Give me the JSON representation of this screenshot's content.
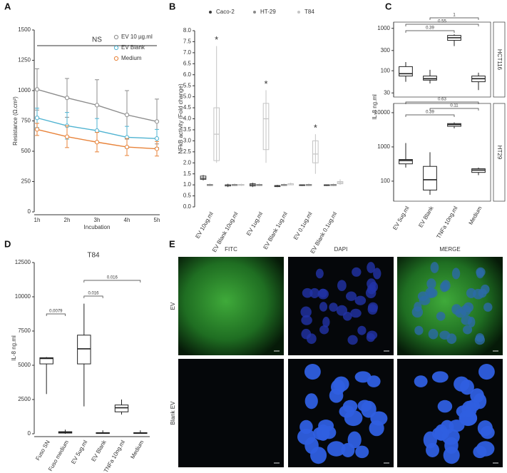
{
  "chart_data": [
    {
      "type": "line",
      "panel": "A",
      "x_label": "Incubation",
      "y_label": "Resistance (Ω.cm²)",
      "annotation": "NS",
      "legend": "upper right",
      "categories": [
        "1h",
        "2h",
        "3h",
        "4h",
        "5h"
      ],
      "ylim": [
        0,
        1500
      ],
      "yticks": [
        0,
        250,
        500,
        750,
        1000,
        1250,
        1500
      ],
      "series": [
        {
          "name": "EV 10 µg.ml",
          "color": "#8c8c8c",
          "values": [
            1010,
            940,
            880,
            800,
            745
          ],
          "errors": [
            170,
            160,
            210,
            200,
            185
          ]
        },
        {
          "name": "EV Blank",
          "color": "#4fb3d1",
          "values": [
            775,
            710,
            670,
            615,
            605
          ],
          "errors": [
            80,
            110,
            100,
            90,
            75
          ]
        },
        {
          "name": "Medium",
          "color": "#e8833a",
          "values": [
            680,
            620,
            575,
            535,
            520
          ],
          "errors": [
            50,
            90,
            80,
            70,
            60
          ]
        }
      ]
    },
    {
      "type": "box",
      "panel": "B",
      "y_label": "NFkB activity (Fold change)",
      "legend": "top",
      "categories": [
        "EV 10ug.ml",
        "EV Blank 10ug.ml",
        "EV 1ug.ml",
        "EV Blank 1ug.ml",
        "EV 0.1ug.ml",
        "EV Blank 0.1ug.ml"
      ],
      "significance": [
        "*",
        null,
        "*",
        null,
        "*",
        null
      ],
      "ylim": [
        0,
        8
      ],
      "yticks": [
        {
          "value": 0,
          "label": "0.0"
        },
        {
          "value": 0.5,
          "label": "0.5"
        },
        {
          "value": 1,
          "label": "1.0"
        },
        {
          "value": 1.5,
          "label": "1.5"
        },
        {
          "value": 2,
          "label": "2.0"
        },
        {
          "value": 2.5,
          "label": "2.5"
        },
        {
          "value": 3,
          "label": "3.0"
        },
        {
          "value": 3.5,
          "label": "3.5"
        },
        {
          "value": 4,
          "label": "4.0"
        },
        {
          "value": 4.5,
          "label": "4.5"
        },
        {
          "value": 5,
          "label": "5.0"
        },
        {
          "value": 5.5,
          "label": "5.5"
        },
        {
          "value": 6,
          "label": "6.0"
        },
        {
          "value": 6.5,
          "label": "6.5"
        },
        {
          "value": 7,
          "label": "7.0"
        },
        {
          "value": 7.5,
          "label": "7.5"
        },
        {
          "value": 8,
          "label": "8.0"
        }
      ],
      "series": [
        {
          "name": "Caco-2",
          "color": "#3a3a3a",
          "min": [
            1.2,
            0.9,
            0.9,
            0.9,
            0.95,
            0.95
          ],
          "q1": [
            1.25,
            0.95,
            0.95,
            0.92,
            0.97,
            0.97
          ],
          "median": [
            1.3,
            1.0,
            1.0,
            0.95,
            1.0,
            1.0
          ],
          "q3": [
            1.4,
            1.0,
            1.05,
            0.97,
            1.0,
            1.0
          ],
          "max": [
            1.45,
            1.05,
            1.1,
            1.0,
            1.02,
            1.02
          ]
        },
        {
          "name": "HT-29",
          "color": "#8a8a8a",
          "min": [
            0.95,
            0.95,
            0.95,
            0.95,
            0.95,
            0.95
          ],
          "q1": [
            0.97,
            0.97,
            0.97,
            0.97,
            0.97,
            0.97
          ],
          "median": [
            1.0,
            1.0,
            1.0,
            1.0,
            1.0,
            1.0
          ],
          "q3": [
            1.02,
            1.02,
            1.02,
            1.02,
            1.02,
            1.02
          ],
          "max": [
            1.05,
            1.05,
            1.05,
            1.05,
            1.05,
            1.05
          ]
        },
        {
          "name": "T84",
          "color": "#c4c4c4",
          "min": [
            2.0,
            0.95,
            2.0,
            1.0,
            1.5,
            1.0
          ],
          "q1": [
            2.1,
            0.98,
            2.6,
            1.0,
            2.0,
            1.05
          ],
          "median": [
            3.3,
            1.0,
            4.0,
            1.05,
            2.4,
            1.1
          ],
          "q3": [
            4.5,
            1.02,
            4.7,
            1.05,
            3.0,
            1.15
          ],
          "max": [
            7.3,
            1.05,
            5.3,
            1.1,
            3.3,
            1.25
          ]
        }
      ]
    },
    {
      "type": "box",
      "panel": "C",
      "y_label": "IL-8 ng.ml",
      "log_scale": true,
      "color": "#222222",
      "categories": [
        "EV 5ug.ml",
        "EV Blank",
        "TNFa 10ng.ml",
        "Medium"
      ],
      "facets": [
        {
          "label": "HCT116",
          "ylim": [
            24,
            1400
          ],
          "yticks": [
            30,
            100,
            300,
            1000
          ],
          "min": [
            55,
            50,
            380,
            35
          ],
          "q1": [
            75,
            60,
            520,
            55
          ],
          "median": [
            85,
            65,
            600,
            65
          ],
          "q3": [
            125,
            75,
            680,
            75
          ],
          "max": [
            160,
            105,
            720,
            90
          ],
          "comparisons": [
            {
              "between": [
                0,
                2
              ],
              "p": 0.39
            },
            {
              "between": [
                0,
                3
              ],
              "p": 0.55
            },
            {
              "between": [
                1,
                3
              ],
              "p": 1
            }
          ]
        },
        {
          "label": "HT29",
          "ylim": [
            26,
            18600
          ],
          "yticks": [
            100,
            1000,
            10000
          ],
          "min": [
            250,
            40,
            3500,
            150
          ],
          "q1": [
            320,
            55,
            4000,
            180
          ],
          "median": [
            400,
            110,
            4500,
            210
          ],
          "q3": [
            430,
            270,
            4800,
            230
          ],
          "max": [
            1300,
            700,
            5200,
            250
          ],
          "comparisons": [
            {
              "between": [
                0,
                2
              ],
              "p": 0.39
            },
            {
              "between": [
                1,
                3
              ],
              "p": 0.11
            },
            {
              "between": [
                0,
                3
              ],
              "p": 0.63
            }
          ]
        }
      ]
    },
    {
      "type": "box",
      "panel": "D",
      "title": "T84",
      "y_label": "IL-8 ng.ml",
      "color": "#222222",
      "categories": [
        "Fuso SN",
        "Fuso medium",
        "EV 5ug.ml",
        "EV Blank",
        "TNFa 10ng.ml",
        "Medium"
      ],
      "ylim": [
        0,
        12500
      ],
      "yticks": [
        0,
        2500,
        5000,
        7500,
        10000,
        12500
      ],
      "min": [
        2900,
        0,
        2000,
        0,
        1400,
        0
      ],
      "q1": [
        5100,
        50,
        5100,
        20,
        1600,
        20
      ],
      "median": [
        5500,
        100,
        6200,
        50,
        1900,
        50
      ],
      "q3": [
        5550,
        150,
        7200,
        80,
        2100,
        80
      ],
      "max": [
        5600,
        300,
        9500,
        250,
        2500,
        250
      ],
      "comparisons": [
        {
          "between": [
            0,
            1
          ],
          "p": 0.0079
        },
        {
          "between": [
            2,
            3
          ],
          "p": 0.016
        },
        {
          "between": [
            2,
            5
          ],
          "p": 0.016
        }
      ]
    }
  ],
  "microscopy": {
    "panel": "E",
    "columns": [
      "FITC",
      "DAPI",
      "MERGE"
    ],
    "rows": [
      "EV",
      "Blank EV"
    ]
  }
}
